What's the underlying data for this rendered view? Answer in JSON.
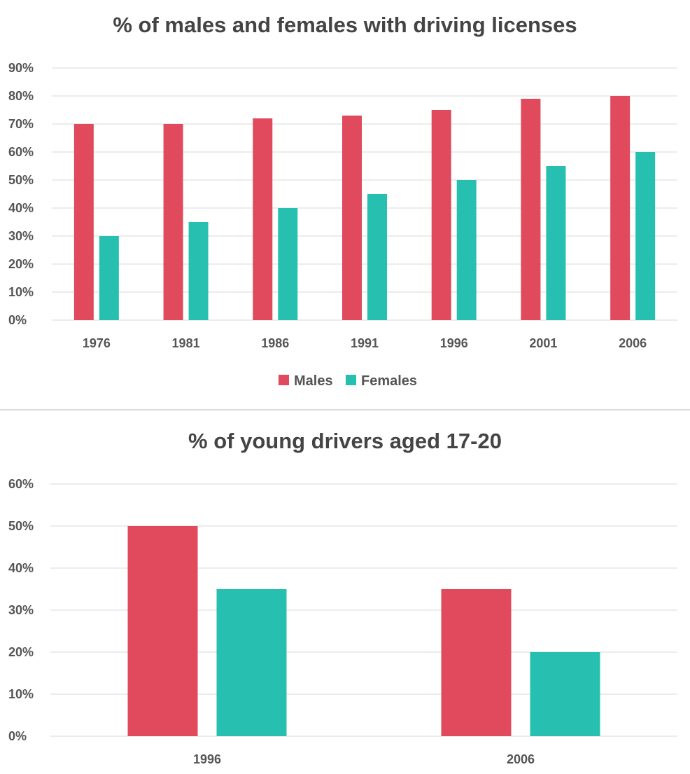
{
  "colors": {
    "males": "#e04a5c",
    "females": "#27c0b0"
  },
  "chart_data": [
    {
      "type": "bar",
      "title": "% of males and females with driving licenses",
      "xlabel": "",
      "ylabel": "",
      "categories": [
        "1976",
        "1981",
        "1986",
        "1991",
        "1996",
        "2001",
        "2006"
      ],
      "series": [
        {
          "name": "Males",
          "values": [
            70,
            70,
            72,
            73,
            75,
            79,
            80
          ]
        },
        {
          "name": "Females",
          "values": [
            30,
            35,
            40,
            45,
            50,
            55,
            60
          ]
        }
      ],
      "ylim": [
        0,
        90
      ],
      "yticks": [
        "0%",
        "10%",
        "20%",
        "30%",
        "40%",
        "50%",
        "60%",
        "70%",
        "80%",
        "90%"
      ],
      "grid": true,
      "legend": "bottom-center"
    },
    {
      "type": "bar",
      "title": "% of young drivers aged 17-20",
      "xlabel": "",
      "ylabel": "",
      "categories": [
        "1996",
        "2006"
      ],
      "series": [
        {
          "name": "Males",
          "values": [
            50,
            35
          ]
        },
        {
          "name": "Females",
          "values": [
            35,
            20
          ]
        }
      ],
      "ylim": [
        0,
        60
      ],
      "yticks": [
        "0%",
        "10%",
        "20%",
        "30%",
        "40%",
        "50%",
        "60%"
      ],
      "grid": true,
      "legend": "none"
    }
  ]
}
